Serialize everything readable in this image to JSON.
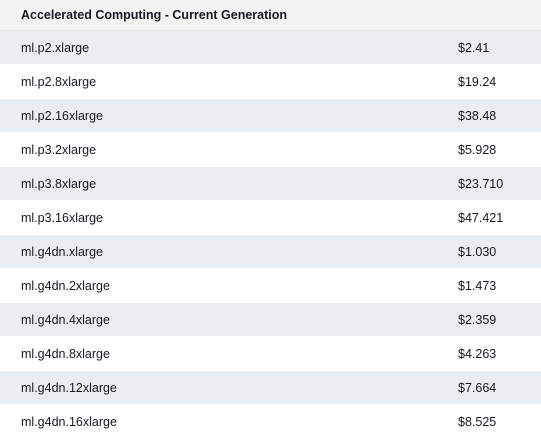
{
  "table": {
    "header": "Accelerated Computing - Current Generation",
    "rows": [
      {
        "instance": "ml.p2.xlarge",
        "price": "$2.41"
      },
      {
        "instance": "ml.p2.8xlarge",
        "price": "$19.24"
      },
      {
        "instance": "ml.p2.16xlarge",
        "price": "$38.48"
      },
      {
        "instance": "ml.p3.2xlarge",
        "price": "$5.928"
      },
      {
        "instance": "ml.p3.8xlarge",
        "price": "$23.710"
      },
      {
        "instance": "ml.p3.16xlarge",
        "price": "$47.421"
      },
      {
        "instance": "ml.g4dn.xlarge",
        "price": "$1.030"
      },
      {
        "instance": "ml.g4dn.2xlarge",
        "price": "$1.473"
      },
      {
        "instance": "ml.g4dn.4xlarge",
        "price": "$2.359"
      },
      {
        "instance": "ml.g4dn.8xlarge",
        "price": "$4.263"
      },
      {
        "instance": "ml.g4dn.12xlarge",
        "price": "$7.664"
      },
      {
        "instance": "ml.g4dn.16xlarge",
        "price": "$8.525"
      }
    ]
  },
  "colors": {
    "header_bg": "#f2f3f3",
    "stripe_bg": "#eaedf1",
    "text": "#16191f"
  }
}
